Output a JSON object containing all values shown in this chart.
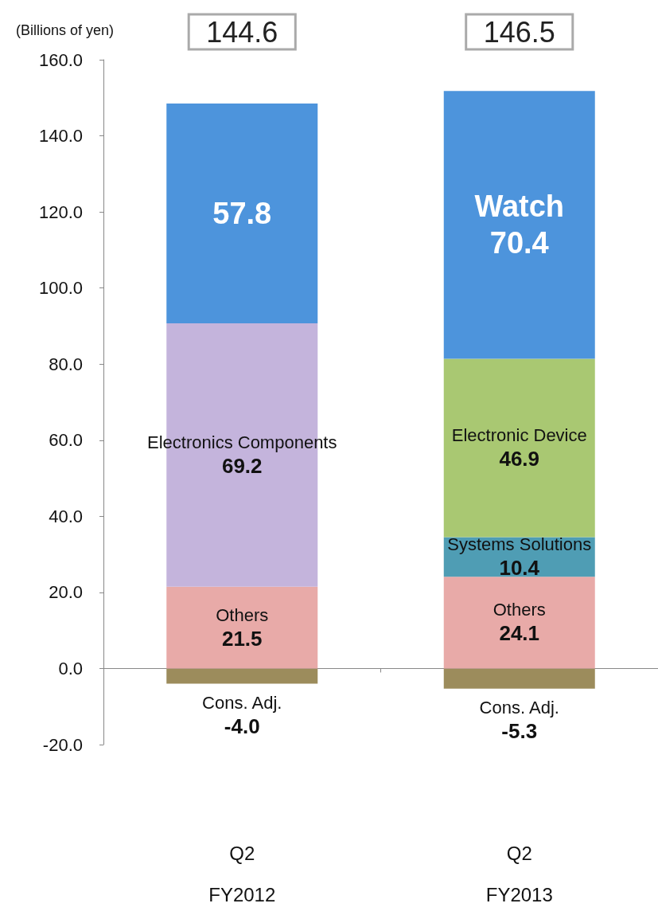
{
  "chart_data": {
    "type": "bar",
    "stacked": true,
    "ylabel": "(Billions of yen)",
    "categories": [
      "Q2\nFY2012",
      "Q2\nFY2013"
    ],
    "series": [
      {
        "name": "Cons. Adj.",
        "color": "#9c8c5c",
        "values": [
          -4.0,
          -5.3
        ],
        "value_labels": [
          "-4.0",
          "-5.3"
        ]
      },
      {
        "name": "Others",
        "color": "#e8aaa8",
        "values": [
          21.5,
          24.1
        ],
        "value_labels": [
          "21.5",
          "24.1"
        ]
      },
      {
        "name": "Systems Solutions",
        "color": "#4f9db4",
        "values": [
          null,
          10.4
        ],
        "value_labels": [
          null,
          "10.4"
        ]
      },
      {
        "name": "Electronics Components",
        "color": "#c4b4dc",
        "values": [
          69.2,
          null
        ],
        "value_labels": [
          "69.2",
          null
        ]
      },
      {
        "name": "Electronic Device",
        "color": "#a9c872",
        "values": [
          null,
          46.9
        ],
        "value_labels": [
          null,
          "46.9"
        ]
      },
      {
        "color": "#4d94dc",
        "values": [
          57.8,
          null
        ],
        "value_labels": [
          "57.8",
          null
        ]
      },
      {
        "name": "Watch",
        "color": "#4d94dc",
        "values": [
          null,
          70.4
        ],
        "value_labels": [
          null,
          "70.4"
        ]
      }
    ],
    "totals": [
      "144.6",
      "146.5"
    ],
    "ylim": [
      -20,
      160
    ],
    "yticks": [
      {
        "value": -20,
        "label": "-20.0"
      },
      {
        "value": 0,
        "label": "0.0"
      },
      {
        "value": 20,
        "label": "20.0"
      },
      {
        "value": 40,
        "label": "40.0"
      },
      {
        "value": 60,
        "label": "60.0"
      },
      {
        "value": 80,
        "label": "80.0"
      },
      {
        "value": 100,
        "label": "100.0"
      },
      {
        "value": 120,
        "label": "120.0"
      },
      {
        "value": 140,
        "label": "140.0"
      },
      {
        "value": 160,
        "label": "160.0"
      }
    ]
  }
}
